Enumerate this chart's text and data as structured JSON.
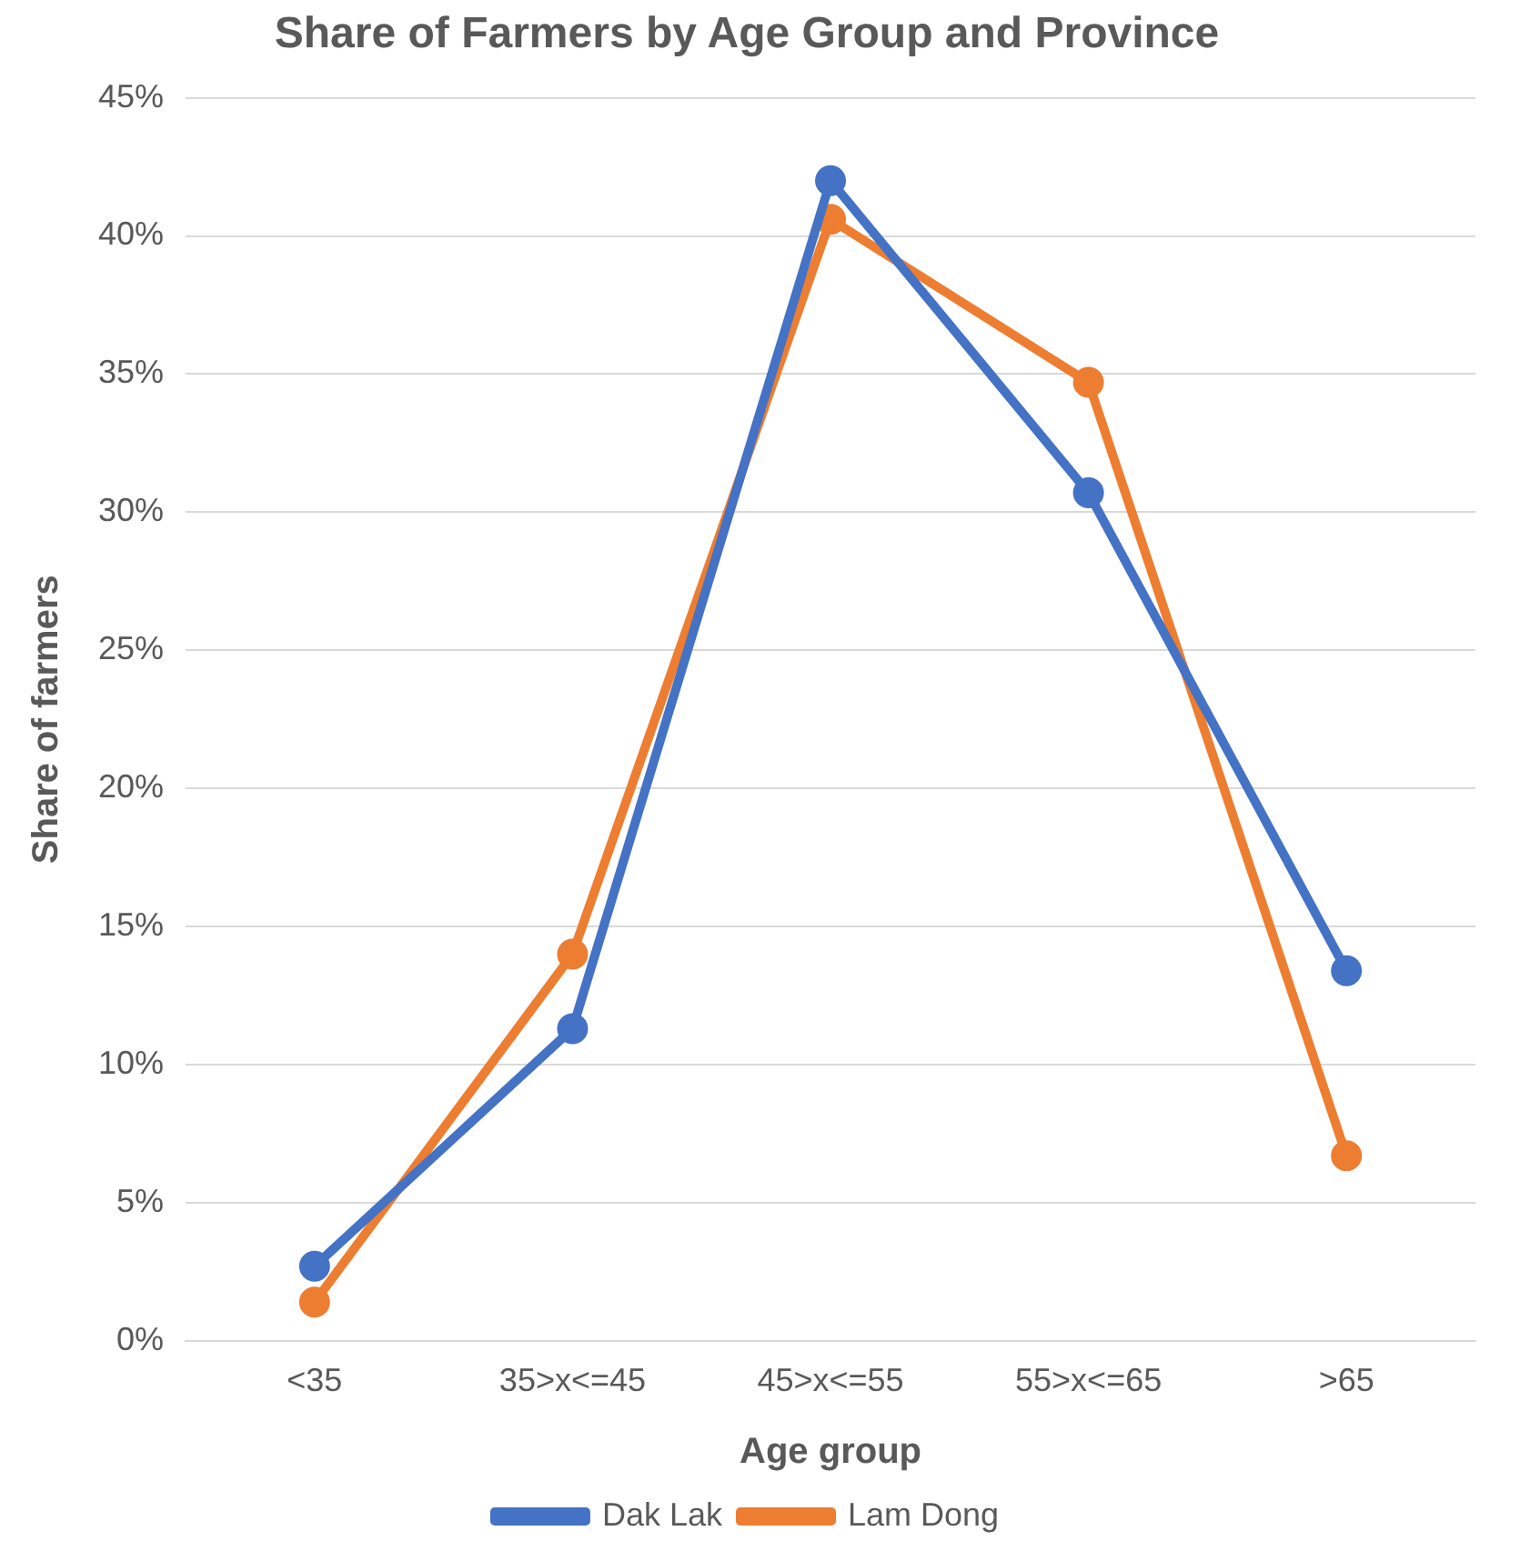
{
  "chart_data": {
    "type": "line",
    "title": "Share of Farmers by Age Group and Province",
    "xlabel": "Age group",
    "ylabel": "Share of farmers",
    "categories": [
      "<35",
      "35>x<=45",
      "45>x<=55",
      "55>x<=65",
      ">65"
    ],
    "series": [
      {
        "name": "Dak Lak",
        "color": "#4472c4",
        "values": [
          2.7,
          11.3,
          42.0,
          30.7,
          13.4
        ]
      },
      {
        "name": "Lam Dong",
        "color": "#ed7d31",
        "values": [
          1.4,
          14.0,
          40.6,
          34.7,
          6.7
        ]
      }
    ],
    "ylim": [
      0,
      45
    ],
    "yticks": [
      {
        "value": 0,
        "label": "0%"
      },
      {
        "value": 5,
        "label": "5%"
      },
      {
        "value": 10,
        "label": "10%"
      },
      {
        "value": 15,
        "label": "15%"
      },
      {
        "value": 20,
        "label": "20%"
      },
      {
        "value": 25,
        "label": "25%"
      },
      {
        "value": 30,
        "label": "30%"
      },
      {
        "value": 35,
        "label": "35%"
      },
      {
        "value": 40,
        "label": "40%"
      },
      {
        "value": 45,
        "label": "45%"
      }
    ],
    "grid": "y",
    "legend": "bottom",
    "marker": "circle",
    "line_style": "solid"
  }
}
